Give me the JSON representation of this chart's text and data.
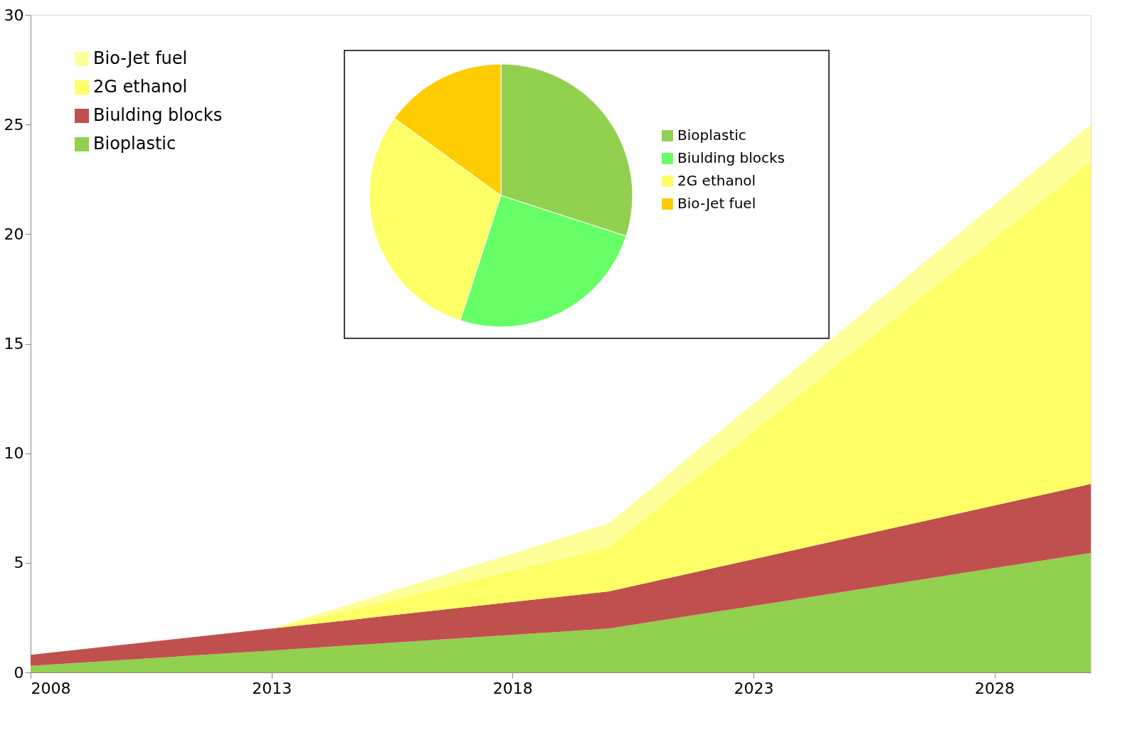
{
  "chart_data": [
    {
      "type": "area",
      "stacked": true,
      "x": [
        2008,
        2013,
        2020,
        2030
      ],
      "xlim": [
        2008,
        2030
      ],
      "xticks": [
        2008,
        2013,
        2018,
        2023,
        2028
      ],
      "ylim": [
        0,
        30
      ],
      "yticks": [
        0,
        5,
        10,
        15,
        20,
        25,
        30
      ],
      "grid": false,
      "legend": "top left",
      "series": [
        {
          "name": "Bioplastic",
          "color": "#92d050",
          "values": [
            0.3,
            1.0,
            2.0,
            5.45
          ]
        },
        {
          "name": "Biulding blocks",
          "color": "#c0504d",
          "values": [
            0.5,
            1.0,
            1.7,
            3.15
          ]
        },
        {
          "name": "2G ethanol",
          "color": "#ffff66",
          "values": [
            0,
            0,
            2.0,
            14.7
          ]
        },
        {
          "name": "Bio-Jet fuel",
          "color": "#ffff99",
          "values": [
            0,
            0,
            1.1,
            1.7
          ]
        }
      ]
    },
    {
      "type": "pie",
      "legend": "right",
      "categories": [
        "Bioplastic",
        "Biulding blocks",
        "2G ethanol",
        "Bio-Jet fuel"
      ],
      "values": [
        30,
        25,
        30,
        15
      ],
      "colors": [
        "#92d050",
        "#66ff66",
        "#ffff66",
        "#ffcc00"
      ]
    }
  ]
}
